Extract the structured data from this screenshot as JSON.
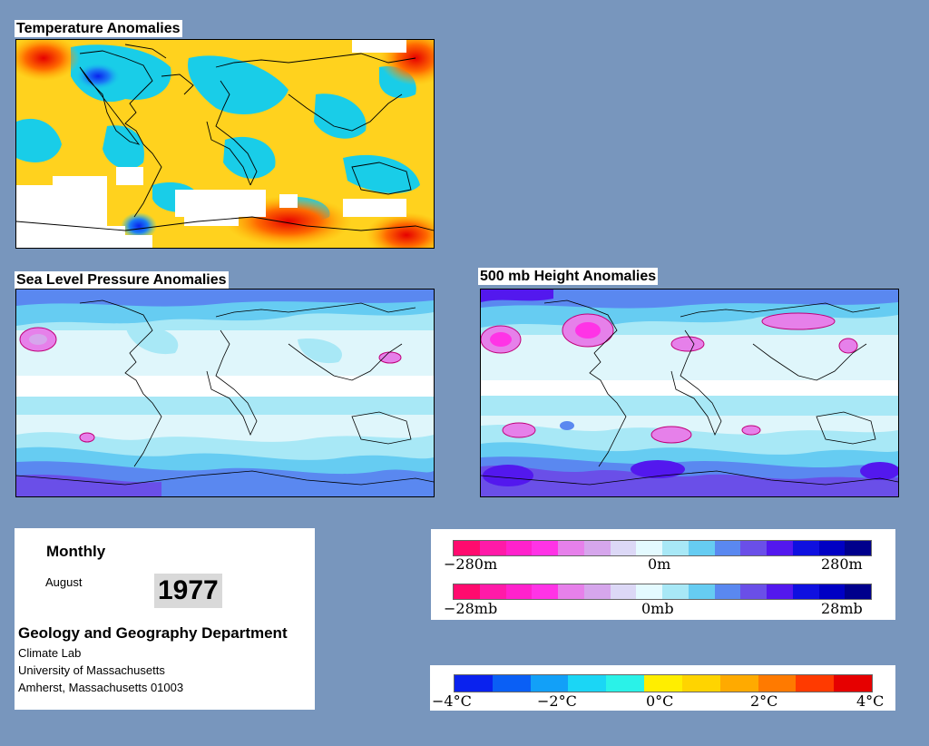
{
  "panels": {
    "temperature": {
      "title": "Temperature Anomalies"
    },
    "slp": {
      "title": "Sea Level Pressure Anomalies"
    },
    "height500": {
      "title": "500 mb Height Anomalies"
    }
  },
  "info": {
    "heading": "Monthly",
    "month": "August",
    "year": "1977",
    "department": "Geology and Geography Department",
    "lines": [
      "Climate Lab",
      "University of Massachusetts",
      "Amherst, Massachusetts 01003"
    ]
  },
  "legend_height": {
    "colors": [
      "#ff0b6e",
      "#ff1aa8",
      "#ff22cc",
      "#ff33e6",
      "#e680ea",
      "#d6a6ec",
      "#dcd8f6",
      "#e4faff",
      "#a8e8f6",
      "#66ccf2",
      "#5a88f0",
      "#6a4fe8",
      "#5318ee",
      "#0f10e0",
      "#0000c4",
      "#00008c"
    ],
    "labels": [
      "−280m",
      "0m",
      "280m"
    ]
  },
  "legend_pressure": {
    "colors": [
      "#ff0b6e",
      "#ff1aa8",
      "#ff22cc",
      "#ff33e6",
      "#e680ea",
      "#d6a6ec",
      "#dcd8f6",
      "#e4faff",
      "#a8e8f6",
      "#66ccf2",
      "#5a88f0",
      "#6a4fe8",
      "#5318ee",
      "#0f10e0",
      "#0000c4",
      "#00008c"
    ],
    "labels": [
      "−28mb",
      "0mb",
      "28mb"
    ]
  },
  "legend_temperature": {
    "colors": [
      "#0a22ee",
      "#0a5ff5",
      "#12a0f8",
      "#1bd6f5",
      "#2af2e8",
      "#ffee00",
      "#ffd400",
      "#ffaa00",
      "#ff7a00",
      "#ff3a00",
      "#e60000"
    ],
    "labels": [
      "−4°C",
      "−2°C",
      "0°C",
      "2°C",
      "4°C"
    ]
  },
  "colors": {
    "page_background": "#7896bd",
    "warm_anomaly": "#ffd21e",
    "cool_anomaly": "#19cde8",
    "no_data": "#ffffff"
  }
}
